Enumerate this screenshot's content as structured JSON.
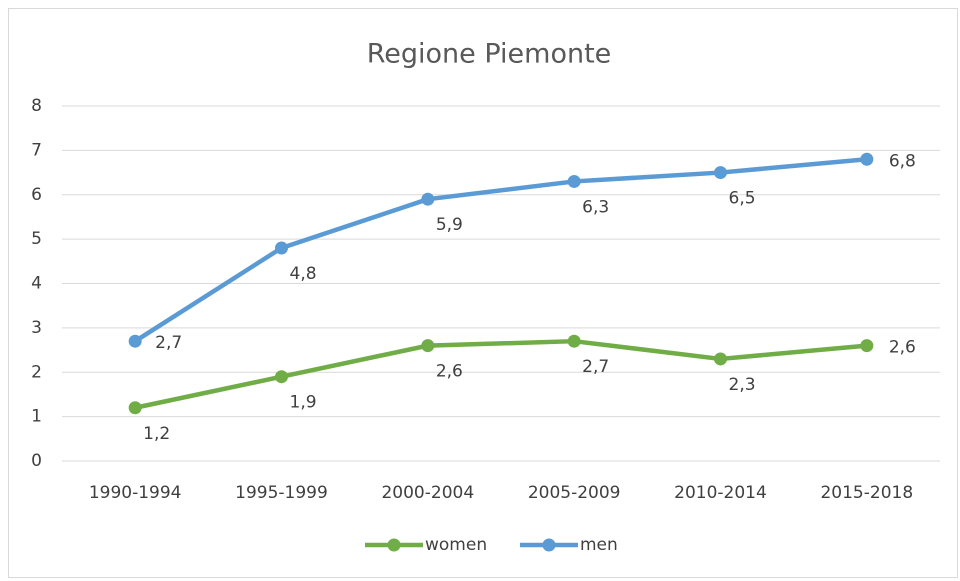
{
  "chart_data": {
    "type": "line",
    "title": "Regione Piemonte",
    "categories": [
      "1990-1994",
      "1995-1999",
      "2000-2004",
      "2005-2009",
      "2010-2014",
      "2015-2018"
    ],
    "series": [
      {
        "name": "women",
        "color": "#70ad47",
        "values": [
          1.2,
          1.9,
          2.6,
          2.7,
          2.3,
          2.6
        ],
        "value_labels": [
          "1,2",
          "1,9",
          "2,6",
          "2,7",
          "2,3",
          "2,6"
        ]
      },
      {
        "name": "men",
        "color": "#5b9bd5",
        "values": [
          2.7,
          4.8,
          5.9,
          6.3,
          6.5,
          6.8
        ],
        "value_labels": [
          "2,7",
          "4,8",
          "5,9",
          "6,3",
          "6,5",
          "6,8"
        ]
      }
    ],
    "ylim": [
      0,
      8
    ],
    "yticks": [
      0,
      1,
      2,
      3,
      4,
      5,
      6,
      7,
      8
    ],
    "grid": true,
    "legend": "bottom"
  }
}
